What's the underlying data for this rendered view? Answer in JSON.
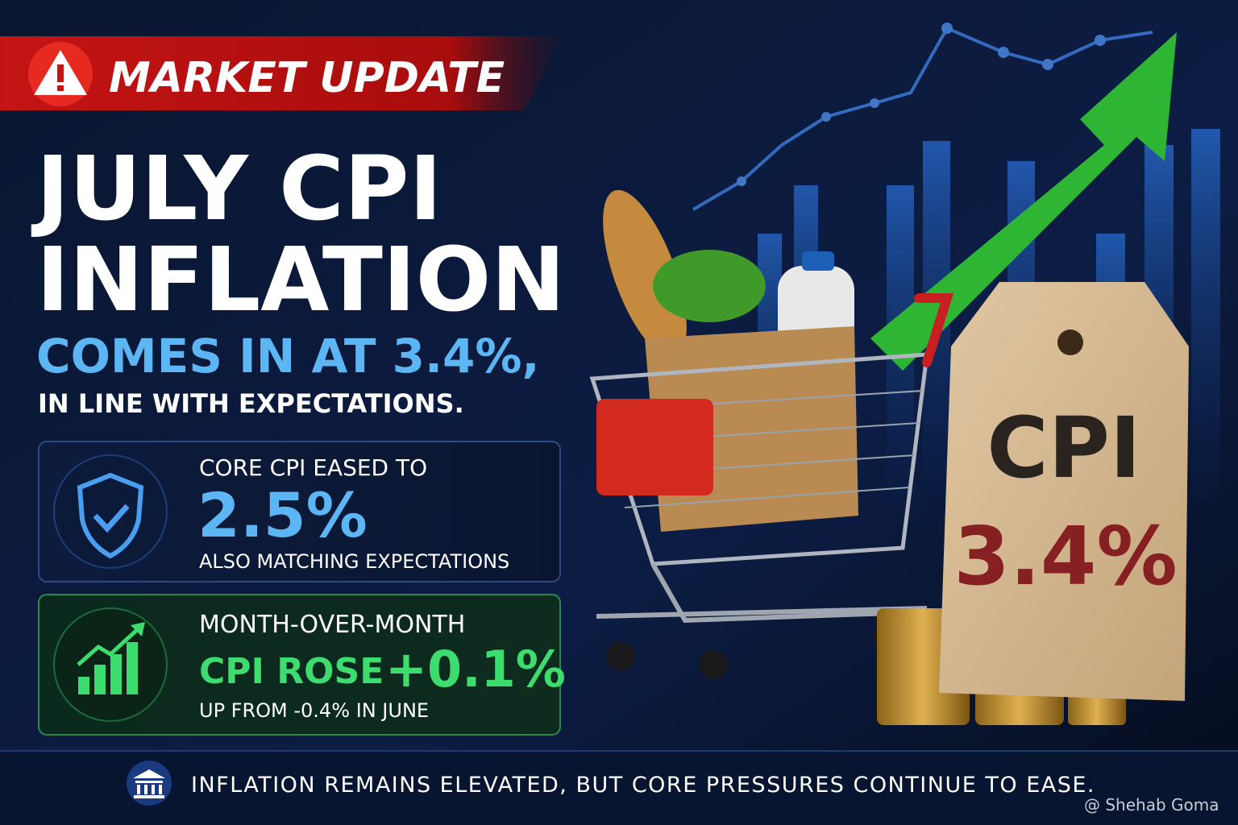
{
  "badge": "MARKET UPDATE",
  "headline": [
    "JULY CPI",
    "INFLATION"
  ],
  "subheadline": "COMES IN AT 3.4%,",
  "subline": "IN LINE WITH EXPECTATIONS.",
  "cards": [
    {
      "label": "CORE CPI EASED TO",
      "value": "2.5%",
      "note": "ALSO MATCHING EXPECTATIONS"
    },
    {
      "label": "MONTH-OVER-MONTH",
      "lead": "CPI ROSE",
      "value": "+0.1%",
      "note": "UP FROM -0.4% IN JUNE"
    }
  ],
  "price_tag": {
    "title": "CPI",
    "value": "3.4%"
  },
  "footer": "INFLATION REMAINS ELEVATED, BUT CORE PRESSURES CONTINUE TO EASE.",
  "watermark": "@ Shehab Goma"
}
